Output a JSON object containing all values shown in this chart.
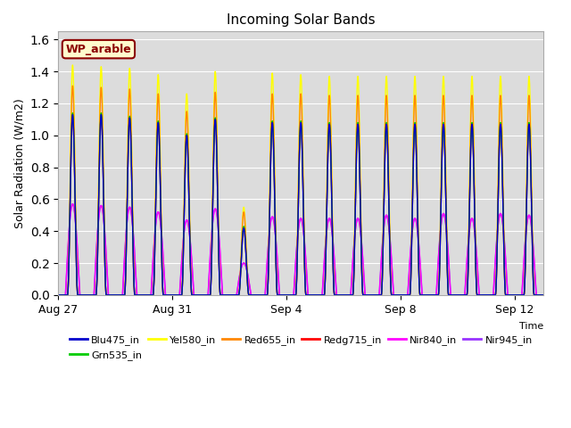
{
  "title": "Incoming Solar Bands",
  "xlabel": "Time",
  "ylabel": "Solar Radiation (W/m2)",
  "annotation": "WP_arable",
  "annotation_color": "#8B0000",
  "annotation_bg": "#FFFACD",
  "annotation_border": "#8B0000",
  "ylim": [
    0,
    1.65
  ],
  "yticks": [
    0.0,
    0.2,
    0.4,
    0.6,
    0.8,
    1.0,
    1.2,
    1.4,
    1.6
  ],
  "bg_color": "#DCDCDC",
  "series": {
    "Blu475_in": {
      "color": "#0000CC",
      "lw": 1.0
    },
    "Grn535_in": {
      "color": "#00CC00",
      "lw": 1.0
    },
    "Yel580_in": {
      "color": "#FFFF00",
      "lw": 1.0
    },
    "Red655_in": {
      "color": "#FF8800",
      "lw": 1.0
    },
    "Redg715_in": {
      "color": "#FF0000",
      "lw": 1.0
    },
    "Nir840_in": {
      "color": "#FF00FF",
      "lw": 1.0
    },
    "Nir945_in": {
      "color": "#9933FF",
      "lw": 1.2
    }
  },
  "x_tick_labels": [
    "Aug 27",
    "Aug 31",
    "Sep 4",
    "Sep 8",
    "Sep 12"
  ],
  "x_tick_positions": [
    0,
    4,
    8,
    12,
    16
  ],
  "n_days": 17,
  "peak_scales": {
    "Yel580_in": [
      1.44,
      1.43,
      1.42,
      1.38,
      1.26,
      1.4,
      0.55,
      1.39,
      1.38,
      1.37,
      1.37,
      1.37,
      1.37,
      1.37,
      1.37,
      1.37,
      1.37
    ],
    "Red655_in": [
      1.31,
      1.3,
      1.29,
      1.26,
      1.15,
      1.27,
      0.52,
      1.26,
      1.26,
      1.25,
      1.25,
      1.25,
      1.25,
      1.25,
      1.25,
      1.25,
      1.25
    ],
    "Redg715_in": [
      1.12,
      1.12,
      1.11,
      1.08,
      1.0,
      1.1,
      0.42,
      1.08,
      1.08,
      1.07,
      1.07,
      1.07,
      1.07,
      1.07,
      1.07,
      1.07,
      1.07
    ],
    "Grn535_in": [
      1.14,
      1.14,
      1.12,
      1.09,
      1.01,
      1.11,
      0.43,
      1.09,
      1.09,
      1.08,
      1.08,
      1.08,
      1.08,
      1.08,
      1.08,
      1.08,
      1.08
    ],
    "Blu475_in": [
      1.13,
      1.13,
      1.11,
      1.08,
      1.0,
      1.1,
      0.42,
      1.08,
      1.08,
      1.07,
      1.07,
      1.07,
      1.07,
      1.07,
      1.07,
      1.07,
      1.07
    ],
    "Nir840_in": [
      0.57,
      0.56,
      0.55,
      0.52,
      0.47,
      0.54,
      0.2,
      0.49,
      0.48,
      0.48,
      0.48,
      0.5,
      0.48,
      0.51,
      0.48,
      0.51,
      0.5
    ],
    "Nir945_in": [
      0.57,
      0.56,
      0.55,
      0.52,
      0.47,
      0.54,
      0.2,
      0.49,
      0.48,
      0.48,
      0.48,
      0.5,
      0.48,
      0.51,
      0.48,
      0.51,
      0.5
    ]
  }
}
